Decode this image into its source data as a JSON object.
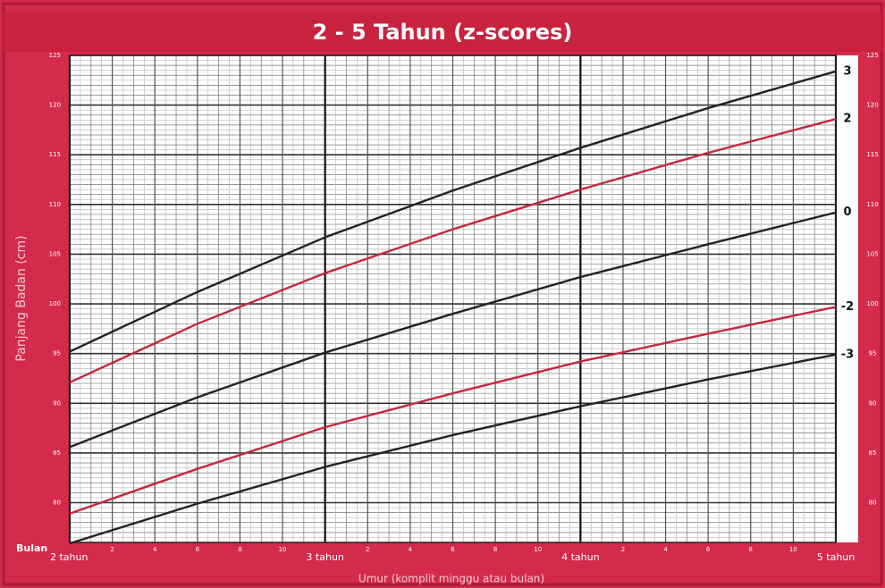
{
  "chart_data": {
    "type": "line",
    "title": "2 - 5 Tahun (z-scores)",
    "y_label": "Panjang Badan (cm)",
    "x_label": "Umur (komplit minggu atau bulan)",
    "x_unit_label": "Bulan",
    "x": [
      24,
      30,
      36,
      42,
      48,
      54,
      60
    ],
    "series": [
      {
        "name": "3",
        "color": "#222222",
        "values": [
          95.2,
          101.2,
          106.7,
          111.4,
          115.7,
          119.7,
          123.4
        ]
      },
      {
        "name": "2",
        "color": "#c4283f",
        "values": [
          92.1,
          98.0,
          103.1,
          107.5,
          111.5,
          115.2,
          118.6
        ]
      },
      {
        "name": "0",
        "color": "#222222",
        "values": [
          85.6,
          90.6,
          95.1,
          99.0,
          102.7,
          106.0,
          109.2
        ]
      },
      {
        "name": "-2",
        "color": "#c4283f",
        "values": [
          78.9,
          83.4,
          87.6,
          91.0,
          94.2,
          97.0,
          99.7
        ]
      },
      {
        "name": "-3",
        "color": "#222222",
        "values": [
          75.9,
          79.9,
          83.6,
          86.8,
          89.7,
          92.4,
          94.9
        ]
      }
    ],
    "xlim": [
      24,
      60
    ],
    "xticks": [
      {
        "value": 24,
        "label": "2 tahun"
      },
      {
        "value": 26,
        "label": "2"
      },
      {
        "value": 28,
        "label": "4"
      },
      {
        "value": 30,
        "label": "6"
      },
      {
        "value": 32,
        "label": "8"
      },
      {
        "value": 34,
        "label": "10"
      },
      {
        "value": 36,
        "label": "3 tahun"
      },
      {
        "value": 38,
        "label": "2"
      },
      {
        "value": 40,
        "label": "4"
      },
      {
        "value": 42,
        "label": "6"
      },
      {
        "value": 44,
        "label": "8"
      },
      {
        "value": 46,
        "label": "10"
      },
      {
        "value": 48,
        "label": "4 tahun"
      },
      {
        "value": 50,
        "label": "2"
      },
      {
        "value": 52,
        "label": "4"
      },
      {
        "value": 54,
        "label": "6"
      },
      {
        "value": 56,
        "label": "8"
      },
      {
        "value": 58,
        "label": "10"
      },
      {
        "value": 60,
        "label": "5 tahun"
      }
    ],
    "ylim": [
      76,
      125
    ],
    "yticks": [
      80,
      85,
      90,
      95,
      100,
      105,
      110,
      115,
      120,
      125
    ],
    "grid": true
  }
}
